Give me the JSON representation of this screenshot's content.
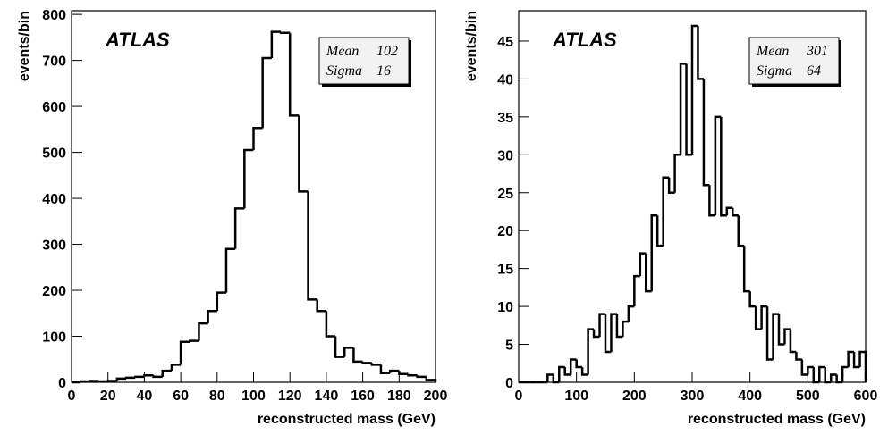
{
  "chart_data": [
    {
      "type": "histogram",
      "label": "ATLAS",
      "x_label": "reconstructed mass (GeV)",
      "y_label": "events/bin",
      "color": "#000000",
      "stats": [
        {
          "label": "Mean",
          "value": 102
        },
        {
          "label": "Sigma",
          "value": 16
        }
      ],
      "bins": [
        0,
        5,
        10,
        15,
        20,
        25,
        30,
        35,
        40,
        45,
        50,
        55,
        60,
        65,
        70,
        75,
        80,
        85,
        90,
        95,
        100,
        105,
        110,
        115,
        120,
        125,
        130,
        135,
        140,
        145,
        150,
        155,
        160,
        165,
        170,
        175,
        180,
        185,
        190,
        195,
        200
      ],
      "values": [
        0,
        2,
        3,
        2,
        3,
        8,
        10,
        12,
        15,
        12,
        25,
        38,
        88,
        90,
        128,
        155,
        195,
        290,
        378,
        505,
        553,
        705,
        762,
        760,
        580,
        415,
        180,
        155,
        100,
        55,
        75,
        45,
        42,
        38,
        20,
        25,
        18,
        15,
        12,
        5
      ],
      "xlim": [
        0,
        200
      ],
      "xticks": [
        0,
        20,
        40,
        60,
        80,
        100,
        120,
        140,
        160,
        180,
        200
      ],
      "ylim": [
        0,
        808
      ],
      "yticks": [
        0,
        100,
        200,
        300,
        400,
        500,
        600,
        700,
        800
      ]
    },
    {
      "type": "histogram",
      "label": "ATLAS",
      "x_label": "reconstructed mass (GeV)",
      "y_label": "events/bin",
      "color": "#000000",
      "stats": [
        {
          "label": "Mean",
          "value": 301
        },
        {
          "label": "Sigma",
          "value": 64
        }
      ],
      "bins": [
        0,
        10,
        20,
        30,
        40,
        50,
        60,
        70,
        80,
        90,
        100,
        110,
        120,
        130,
        140,
        150,
        160,
        170,
        180,
        190,
        200,
        210,
        220,
        230,
        240,
        250,
        260,
        270,
        280,
        290,
        300,
        310,
        320,
        330,
        340,
        350,
        360,
        370,
        380,
        390,
        400,
        410,
        420,
        430,
        440,
        450,
        460,
        470,
        480,
        490,
        500,
        510,
        520,
        530,
        540,
        550,
        560,
        570,
        580,
        590,
        600
      ],
      "values": [
        0,
        0,
        0,
        0,
        0,
        1,
        0,
        2,
        1,
        3,
        2,
        1,
        7,
        6,
        9,
        4,
        9,
        6,
        8,
        10,
        14,
        17,
        12,
        22,
        18,
        27,
        25,
        30,
        42,
        30,
        47,
        40,
        26,
        22,
        35,
        22,
        23,
        22,
        18,
        12,
        10,
        7,
        10,
        3,
        9,
        5,
        7,
        4,
        3,
        1,
        2,
        0,
        2,
        0,
        1,
        0,
        2,
        4,
        2,
        4
      ],
      "xlim": [
        0,
        600
      ],
      "xticks": [
        0,
        100,
        200,
        300,
        400,
        500,
        600
      ],
      "ylim": [
        0,
        49
      ],
      "yticks": [
        0,
        5,
        10,
        15,
        20,
        25,
        30,
        35,
        40,
        45
      ]
    }
  ]
}
